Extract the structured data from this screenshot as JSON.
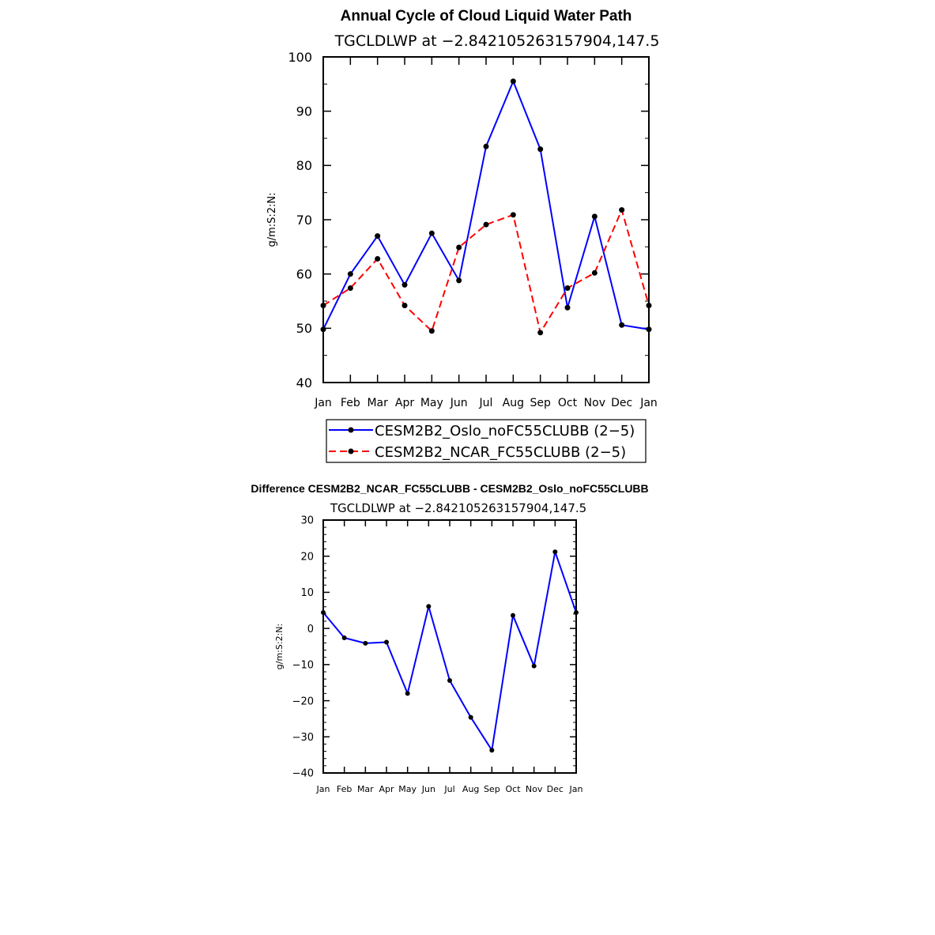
{
  "chart_data": [
    {
      "type": "line",
      "title": "Annual Cycle of Cloud Liquid Water Path",
      "subtitle": "TGCLDLWP  at  −2.842105263157904,147.5",
      "ylabel": "g/m:S:2:N:",
      "xlabel": "",
      "ylim": [
        40,
        100
      ],
      "yticks": [
        "40",
        "50",
        "60",
        "70",
        "80",
        "90",
        "100"
      ],
      "categories": [
        "Jan",
        "Feb",
        "Mar",
        "Apr",
        "May",
        "Jun",
        "Jul",
        "Aug",
        "Sep",
        "Oct",
        "Nov",
        "Dec",
        "Jan"
      ],
      "series": [
        {
          "name": "CESM2B2_Oslo_noFC55CLUBB (2−5)",
          "color": "#0000ff",
          "dash": "solid",
          "values": [
            49.8,
            60.0,
            67.0,
            58.0,
            67.5,
            58.8,
            83.5,
            95.5,
            83.0,
            53.8,
            70.6,
            50.6,
            49.8
          ]
        },
        {
          "name": "CESM2B2_NCAR_FC55CLUBB (2−5)",
          "color": "#ff0000",
          "dash": "dashed",
          "values": [
            54.2,
            57.4,
            62.8,
            54.2,
            49.5,
            64.9,
            69.1,
            70.9,
            49.2,
            57.4,
            60.2,
            71.8,
            54.2
          ]
        }
      ]
    },
    {
      "type": "line",
      "title": "Difference CESM2B2_NCAR_FC55CLUBB - CESM2B2_Oslo_noFC55CLUBB",
      "subtitle": "TGCLDLWP  at  −2.842105263157904,147.5",
      "ylabel": "g/m:S:2:N:",
      "xlabel": "",
      "ylim": [
        -40,
        30
      ],
      "yticks": [
        "−40",
        "−30",
        "−20",
        "−10",
        "0",
        "10",
        "20",
        "30"
      ],
      "categories": [
        "Jan",
        "Feb",
        "Mar",
        "Apr",
        "May",
        "Jun",
        "Jul",
        "Aug",
        "Sep",
        "Oct",
        "Nov",
        "Dec",
        "Jan"
      ],
      "series": [
        {
          "name": "Difference",
          "color": "#0000ff",
          "dash": "solid",
          "values": [
            4.4,
            -2.6,
            -4.1,
            -3.8,
            -18.0,
            6.1,
            -14.4,
            -24.6,
            -33.7,
            3.6,
            -10.4,
            21.2,
            4.4
          ]
        }
      ]
    }
  ]
}
